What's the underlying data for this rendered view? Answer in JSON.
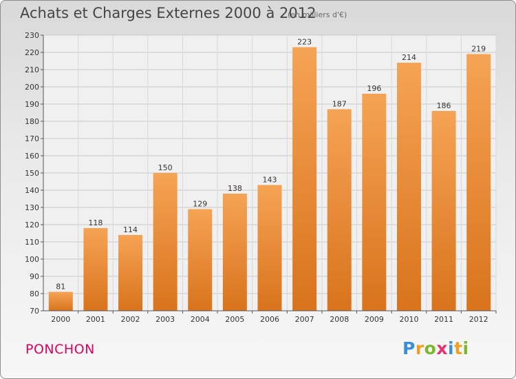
{
  "title": "Achats et Charges Externes 2000 à 2012",
  "subtitle": "(en milliers d'€)",
  "commune": "PONCHON",
  "logo": {
    "text": "Proxiti",
    "letters": [
      {
        "ch": "P",
        "color": "#3a8fd8"
      },
      {
        "ch": "r",
        "color": "#f0a020"
      },
      {
        "ch": "o",
        "color": "#7cb82f"
      },
      {
        "ch": "x",
        "color": "#e6336f"
      },
      {
        "ch": "i",
        "color": "#3a8fd8"
      },
      {
        "ch": "t",
        "color": "#f0a020"
      },
      {
        "ch": "i",
        "color": "#7cb82f"
      }
    ]
  },
  "chart_data": {
    "type": "bar",
    "categories": [
      "2000",
      "2001",
      "2002",
      "2003",
      "2004",
      "2005",
      "2006",
      "2007",
      "2008",
      "2009",
      "2010",
      "2011",
      "2012"
    ],
    "values": [
      81,
      118,
      114,
      150,
      129,
      138,
      143,
      223,
      187,
      196,
      214,
      186,
      219
    ],
    "ylim": [
      70,
      230
    ],
    "yticks": [
      70,
      80,
      90,
      100,
      110,
      120,
      130,
      140,
      150,
      160,
      170,
      180,
      190,
      200,
      210,
      220,
      230
    ],
    "grid": true,
    "bar_color_top": "#f5a355",
    "bar_color_bottom": "#d9731c"
  }
}
